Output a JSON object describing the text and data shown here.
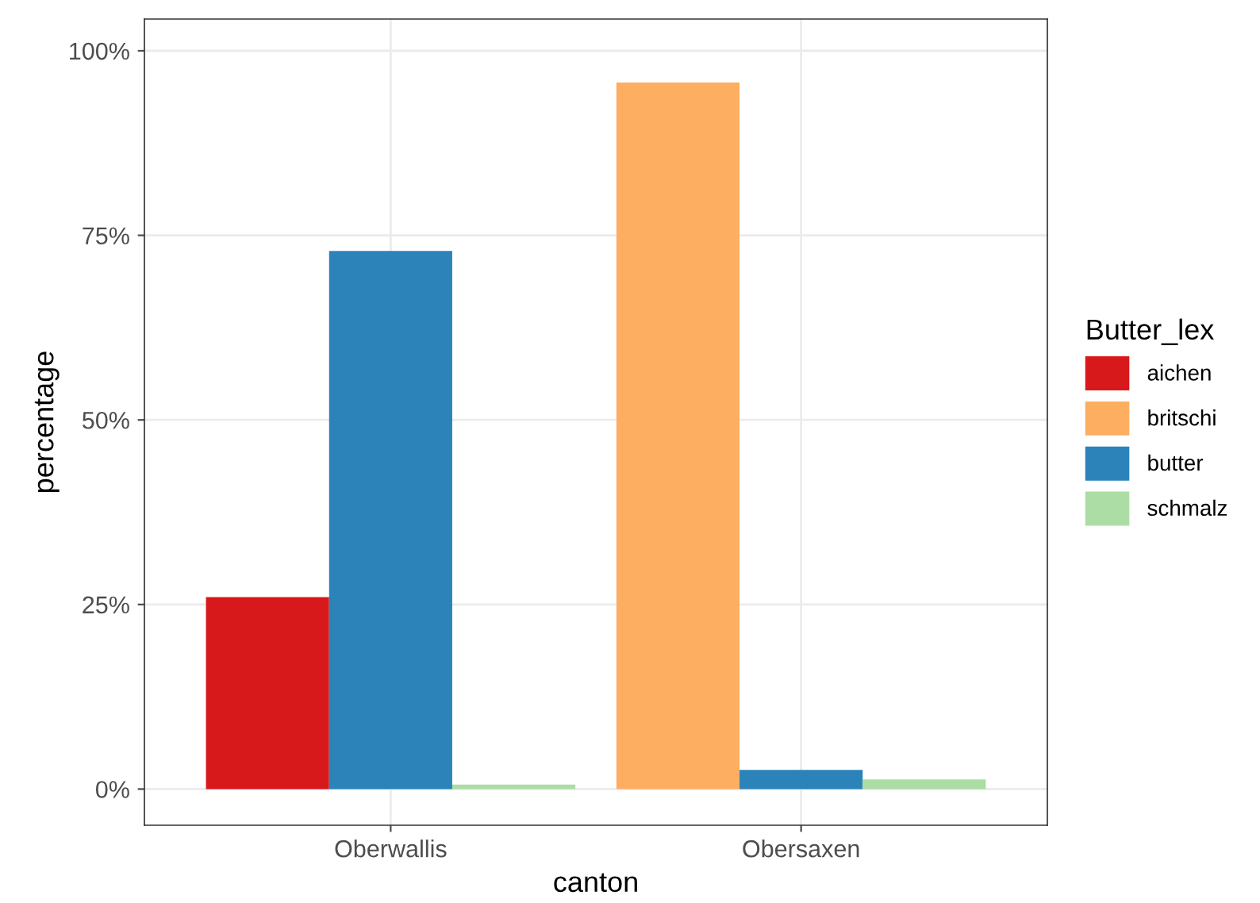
{
  "chart_data": {
    "type": "bar",
    "xlabel": "canton",
    "ylabel": "percentage",
    "legend_title": "Butter_lex",
    "categories": [
      "Oberwallis",
      "Obersaxen"
    ],
    "series": [
      {
        "name": "aichen",
        "color": "#d7191c",
        "values": [
          26.0,
          null
        ]
      },
      {
        "name": "britschi",
        "color": "#fdae61",
        "values": [
          null,
          95.7
        ]
      },
      {
        "name": "butter",
        "color": "#2b83ba",
        "values": [
          72.9,
          2.6
        ]
      },
      {
        "name": "schmalz",
        "color": "#abdda4",
        "values": [
          0.6,
          1.3
        ]
      }
    ],
    "ylim": [
      -4.9,
      104.3
    ],
    "yticks": [
      {
        "value": 0,
        "label": "0%"
      },
      {
        "value": 25,
        "label": "25%"
      },
      {
        "value": 50,
        "label": "50%"
      },
      {
        "value": 75,
        "label": "75%"
      },
      {
        "value": 100,
        "label": "100%"
      }
    ],
    "grid": true,
    "legend": "right"
  }
}
